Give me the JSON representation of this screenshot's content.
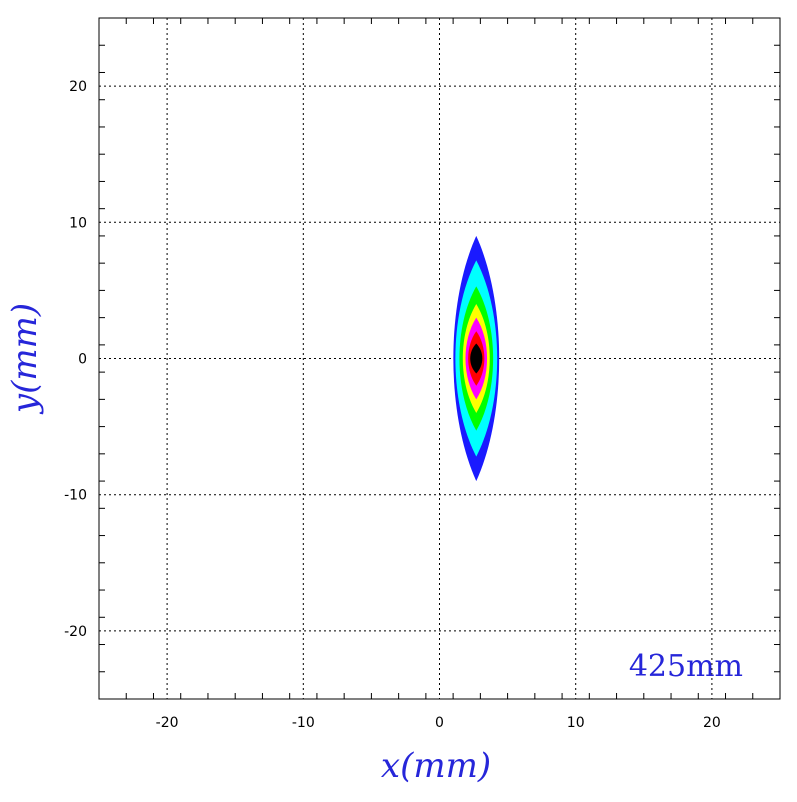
{
  "chart_data": {
    "type": "heatmap",
    "title": "",
    "xlabel": "x(mm)",
    "ylabel": "y(mm)",
    "xlim": [
      -25,
      25
    ],
    "ylim": [
      -25,
      25
    ],
    "x_ticks": [
      -20,
      -10,
      0,
      10,
      20
    ],
    "y_ticks": [
      -20,
      -10,
      0,
      10,
      20
    ],
    "x_tick_labels": [
      "-20",
      "-10",
      "0",
      "10",
      "20"
    ],
    "y_tick_labels": [
      "-20",
      "-10",
      "0",
      "10",
      "20"
    ],
    "minor_tick_step": 2,
    "grid": true,
    "grid_style": "dotted",
    "annotation": "425mm",
    "spot": {
      "center": [
        2.7,
        0
      ],
      "levels": [
        {
          "color": "#1a1aff",
          "half_width": 1.7,
          "half_height": 9.0
        },
        {
          "color": "#00ffff",
          "half_width": 1.55,
          "half_height": 7.2
        },
        {
          "color": "#00ff00",
          "half_width": 1.25,
          "half_height": 5.3
        },
        {
          "color": "#ffff00",
          "half_width": 1.0,
          "half_height": 4.0
        },
        {
          "color": "#ff00ff",
          "half_width": 0.8,
          "half_height": 3.0
        },
        {
          "color": "#ff0000",
          "half_width": 0.6,
          "half_height": 2.0
        },
        {
          "color": "#000000",
          "half_width": 0.45,
          "half_height": 1.1
        }
      ]
    }
  }
}
